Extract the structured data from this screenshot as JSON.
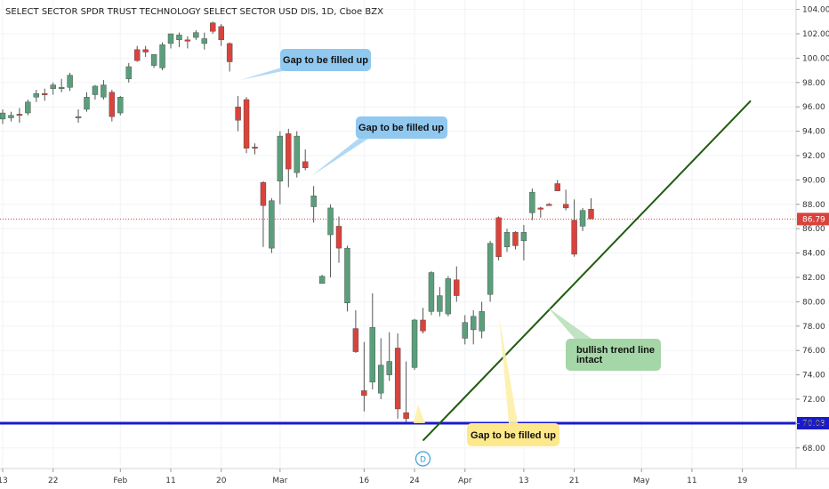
{
  "chart_data": {
    "type": "candlestick",
    "title": "SELECT SECTOR SPDR TRUST TECHNOLOGY SELECT SECTOR USD DIS, 1D, Cboe BZX",
    "y_ticks": [
      68,
      70,
      72,
      74,
      76,
      78,
      80,
      82,
      84,
      86,
      88,
      90,
      92,
      94,
      96,
      98,
      100,
      102,
      104
    ],
    "y_tick_labels": [
      "68.00",
      "70.00",
      "72.00",
      "74.00",
      "76.00",
      "78.00",
      "80.00",
      "82.00",
      "84.00",
      "86.00",
      "88.00",
      "90.00",
      "92.00",
      "94.00",
      "96.00",
      "98.00",
      "100.00",
      "102.00",
      "104.00"
    ],
    "x_ticks": [
      {
        "label": "13",
        "i": 0
      },
      {
        "label": "22",
        "i": 6
      },
      {
        "label": "Feb",
        "i": 14
      },
      {
        "label": "11",
        "i": 20
      },
      {
        "label": "20",
        "i": 26
      },
      {
        "label": "Mar",
        "i": 33
      },
      {
        "label": "16",
        "i": 43
      },
      {
        "label": "24",
        "i": 49
      },
      {
        "label": "Apr",
        "i": 55
      },
      {
        "label": "13",
        "i": 62
      },
      {
        "label": "21",
        "i": 68
      },
      {
        "label": "May",
        "i": 76
      },
      {
        "label": "11",
        "i": 82
      },
      {
        "label": "19",
        "i": 88
      }
    ],
    "price_label": "86.79",
    "last_price": 86.79,
    "support_label": "70.03",
    "support_level": 70.03,
    "colors": {
      "up": "#5b9e7c",
      "down": "#d9433c",
      "support": "#1a1acc",
      "trend": "#1f5b0f",
      "price": "#d9433c"
    },
    "candles": [
      {
        "o": 95.0,
        "h": 95.8,
        "l": 94.6,
        "c": 95.5
      },
      {
        "o": 95.1,
        "h": 95.6,
        "l": 94.8,
        "c": 95.3
      },
      {
        "o": 95.4,
        "h": 95.9,
        "l": 94.7,
        "c": 95.3
      },
      {
        "o": 95.5,
        "h": 96.6,
        "l": 95.3,
        "c": 96.4
      },
      {
        "o": 96.8,
        "h": 97.4,
        "l": 96.4,
        "c": 97.1
      },
      {
        "o": 97.1,
        "h": 97.5,
        "l": 96.5,
        "c": 97.0
      },
      {
        "o": 97.5,
        "h": 98.0,
        "l": 97.0,
        "c": 97.8
      },
      {
        "o": 97.6,
        "h": 98.3,
        "l": 97.2,
        "c": 97.6
      },
      {
        "o": 97.6,
        "h": 98.8,
        "l": 97.3,
        "c": 98.6
      },
      {
        "o": 95.2,
        "h": 95.8,
        "l": 94.7,
        "c": 95.2
      },
      {
        "o": 95.8,
        "h": 97.2,
        "l": 95.6,
        "c": 96.8
      },
      {
        "o": 97.0,
        "h": 97.8,
        "l": 96.6,
        "c": 97.7
      },
      {
        "o": 96.8,
        "h": 98.2,
        "l": 96.6,
        "c": 97.8
      },
      {
        "o": 97.2,
        "h": 97.4,
        "l": 94.8,
        "c": 95.2
      },
      {
        "o": 95.5,
        "h": 96.9,
        "l": 95.3,
        "c": 96.8
      },
      {
        "o": 98.3,
        "h": 99.6,
        "l": 98.0,
        "c": 99.3
      },
      {
        "o": 100.7,
        "h": 101.0,
        "l": 99.7,
        "c": 99.8
      },
      {
        "o": 100.7,
        "h": 101.0,
        "l": 100.1,
        "c": 100.5
      },
      {
        "o": 99.4,
        "h": 100.3,
        "l": 99.2,
        "c": 100.3
      },
      {
        "o": 99.2,
        "h": 101.3,
        "l": 99.0,
        "c": 101.1
      },
      {
        "o": 101.2,
        "h": 102.0,
        "l": 100.8,
        "c": 102.0
      },
      {
        "o": 101.5,
        "h": 102.1,
        "l": 100.9,
        "c": 101.9
      },
      {
        "o": 101.5,
        "h": 101.8,
        "l": 100.8,
        "c": 101.4
      },
      {
        "o": 101.7,
        "h": 102.3,
        "l": 101.5,
        "c": 102.1
      },
      {
        "o": 101.2,
        "h": 102.1,
        "l": 100.7,
        "c": 101.6
      },
      {
        "o": 102.9,
        "h": 103.0,
        "l": 102.0,
        "c": 102.2
      },
      {
        "o": 102.6,
        "h": 102.8,
        "l": 101.0,
        "c": 101.5
      },
      {
        "o": 101.2,
        "h": 101.3,
        "l": 98.9,
        "c": 99.7
      },
      {
        "o": 96.0,
        "h": 96.9,
        "l": 94.0,
        "c": 94.9
      },
      {
        "o": 96.6,
        "h": 96.8,
        "l": 92.2,
        "c": 92.6
      },
      {
        "o": 92.7,
        "h": 93.0,
        "l": 92.1,
        "c": 92.6
      },
      {
        "o": 89.8,
        "h": 89.9,
        "l": 84.5,
        "c": 87.9
      },
      {
        "o": 84.4,
        "h": 88.5,
        "l": 84.0,
        "c": 88.3
      },
      {
        "o": 89.9,
        "h": 94.0,
        "l": 88.0,
        "c": 93.6
      },
      {
        "o": 93.8,
        "h": 94.2,
        "l": 89.4,
        "c": 90.9
      },
      {
        "o": 90.6,
        "h": 94.0,
        "l": 90.2,
        "c": 93.6
      },
      {
        "o": 91.5,
        "h": 92.5,
        "l": 90.8,
        "c": 91.0
      },
      {
        "o": 87.8,
        "h": 89.5,
        "l": 86.5,
        "c": 88.7
      },
      {
        "o": 81.5,
        "h": 82.2,
        "l": 81.5,
        "c": 82.1
      },
      {
        "o": 85.5,
        "h": 88.0,
        "l": 82.0,
        "c": 87.7
      },
      {
        "o": 86.2,
        "h": 87.0,
        "l": 83.2,
        "c": 84.4
      },
      {
        "o": 79.9,
        "h": 84.6,
        "l": 79.2,
        "c": 84.4
      },
      {
        "o": 77.8,
        "h": 79.3,
        "l": 75.8,
        "c": 75.9
      },
      {
        "o": 72.7,
        "h": 76.7,
        "l": 71.0,
        "c": 72.3
      },
      {
        "o": 73.4,
        "h": 80.7,
        "l": 72.8,
        "c": 77.9
      },
      {
        "o": 72.5,
        "h": 77.0,
        "l": 72.0,
        "c": 74.8
      },
      {
        "o": 74.0,
        "h": 77.5,
        "l": 73.5,
        "c": 75.1
      },
      {
        "o": 76.2,
        "h": 77.4,
        "l": 70.4,
        "c": 71.2
      },
      {
        "o": 70.9,
        "h": 75.1,
        "l": 70.1,
        "c": 70.4
      },
      {
        "o": 74.6,
        "h": 78.6,
        "l": 74.4,
        "c": 78.5
      },
      {
        "o": 78.5,
        "h": 79.5,
        "l": 77.4,
        "c": 77.6
      },
      {
        "o": 79.2,
        "h": 82.5,
        "l": 78.9,
        "c": 82.4
      },
      {
        "o": 79.2,
        "h": 81.2,
        "l": 78.8,
        "c": 80.5
      },
      {
        "o": 79.0,
        "h": 82.1,
        "l": 78.8,
        "c": 81.9
      },
      {
        "o": 81.8,
        "h": 82.9,
        "l": 80.0,
        "c": 80.5
      },
      {
        "o": 77.0,
        "h": 78.9,
        "l": 76.5,
        "c": 78.3
      },
      {
        "o": 77.7,
        "h": 79.3,
        "l": 76.5,
        "c": 78.8
      },
      {
        "o": 77.6,
        "h": 80.0,
        "l": 77.0,
        "c": 79.2
      },
      {
        "o": 80.6,
        "h": 85.0,
        "l": 80.0,
        "c": 84.8
      },
      {
        "o": 86.9,
        "h": 87.0,
        "l": 83.4,
        "c": 83.7
      },
      {
        "o": 84.5,
        "h": 86.0,
        "l": 84.1,
        "c": 85.7
      },
      {
        "o": 85.7,
        "h": 85.8,
        "l": 84.3,
        "c": 84.6
      },
      {
        "o": 85.0,
        "h": 86.3,
        "l": 83.4,
        "c": 85.7
      },
      {
        "o": 87.3,
        "h": 89.3,
        "l": 86.7,
        "c": 89.0
      },
      {
        "o": 87.7,
        "h": 87.8,
        "l": 86.9,
        "c": 87.6
      },
      {
        "o": 88.0,
        "h": 88.1,
        "l": 87.9,
        "c": 87.9
      },
      {
        "o": 89.7,
        "h": 90.0,
        "l": 89.1,
        "c": 89.1
      },
      {
        "o": 88.0,
        "h": 89.2,
        "l": 87.5,
        "c": 87.7
      },
      {
        "o": 86.7,
        "h": 88.4,
        "l": 83.7,
        "c": 83.9
      },
      {
        "o": 86.2,
        "h": 87.7,
        "l": 85.8,
        "c": 87.5
      },
      {
        "o": 87.6,
        "h": 88.5,
        "l": 86.8,
        "c": 86.8
      }
    ],
    "trend_line": {
      "from": {
        "i": 50,
        "price": 68.6
      },
      "to": {
        "i": 89,
        "price": 96.5
      }
    },
    "annotations": [
      {
        "text": "Gap to be filled up",
        "style": "blue"
      },
      {
        "text": "Gap to be filled up",
        "style": "blue"
      },
      {
        "text": "Gap to be filled up",
        "style": "yellow"
      },
      {
        "text": "bullish trend line intact",
        "style": "green"
      }
    ],
    "marker": {
      "label": "D",
      "i": 50
    }
  }
}
